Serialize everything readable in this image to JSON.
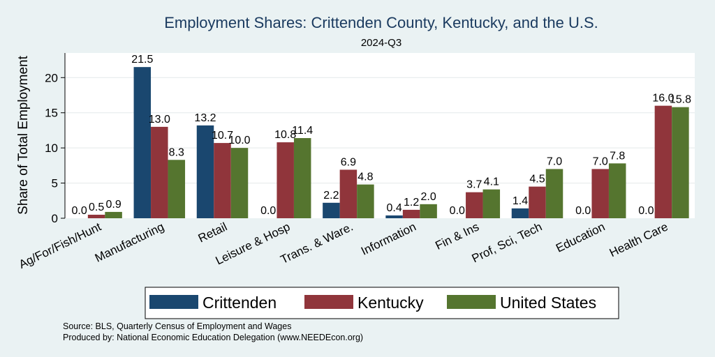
{
  "chart_data": {
    "type": "bar",
    "title": "Employment Shares: Crittenden County, Kentucky, and the U.S.",
    "subtitle": "2024-Q3",
    "ylabel": "Share of Total Employment",
    "xlabel": "",
    "ylim": [
      0,
      23.5
    ],
    "yticks": [
      0,
      5,
      10,
      15,
      20
    ],
    "grid": true,
    "legend_position": "bottom",
    "categories": [
      "Ag/For/Fish/Hunt",
      "Manufacturing",
      "Retail",
      "Leisure & Hosp",
      "Trans. & Ware.",
      "Information",
      "Fin & Ins",
      "Prof, Sci, Tech",
      "Education",
      "Health Care"
    ],
    "series": [
      {
        "name": "Crittenden",
        "color": "#1a476f",
        "values": [
          0.0,
          21.5,
          13.2,
          0.0,
          2.2,
          0.4,
          0.0,
          1.4,
          0.0,
          0.0
        ],
        "labels": [
          "0.0",
          "21.5",
          "13.2",
          "0.0",
          "2.2",
          "0.4",
          "0.0",
          "1.4",
          "0.0",
          "0.0"
        ]
      },
      {
        "name": "Kentucky",
        "color": "#90353b",
        "values": [
          0.5,
          13.0,
          10.7,
          10.8,
          6.9,
          1.2,
          3.7,
          4.5,
          7.0,
          16.0
        ],
        "labels": [
          "0.5",
          "13.0",
          "10.7",
          "10.8",
          "6.9",
          "1.2",
          "3.7",
          "4.5",
          "7.0",
          "16.0"
        ]
      },
      {
        "name": "United States",
        "color": "#55752f",
        "values": [
          0.9,
          8.3,
          10.0,
          11.4,
          4.8,
          2.0,
          4.1,
          7.0,
          7.8,
          15.8
        ],
        "labels": [
          "0.9",
          "8.3",
          "10.0",
          "11.4",
          "4.8",
          "2.0",
          "4.1",
          "7.0",
          "7.8",
          "15.8"
        ]
      }
    ],
    "notes": [
      "Source: BLS, Quarterly Census of Employment and Wages",
      "Produced by: National Economic Education Delegation (www.NEEDEcon.org)"
    ]
  }
}
